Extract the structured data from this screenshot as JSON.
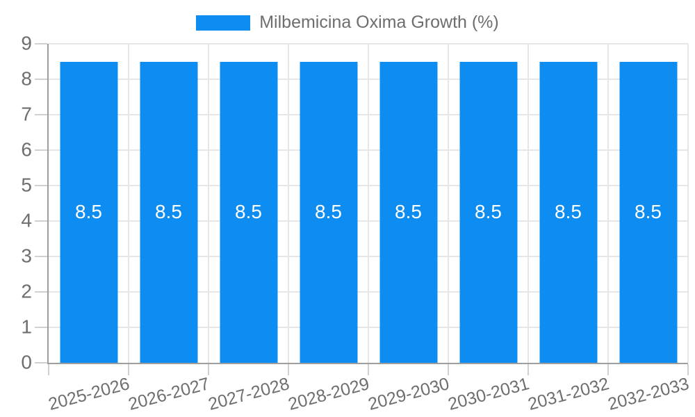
{
  "legend": {
    "label": "Milbemicina Oxima Growth (%)"
  },
  "chart_data": {
    "type": "bar",
    "title": "",
    "series": [
      {
        "name": "Milbemicina Oxima Growth (%)",
        "values": [
          8.5,
          8.5,
          8.5,
          8.5,
          8.5,
          8.5,
          8.5,
          8.5
        ]
      }
    ],
    "categories": [
      "2025-2026",
      "2026-2027",
      "2027-2028",
      "2028-2029",
      "2029-2030",
      "2030-2031",
      "2031-2032",
      "2032-2033"
    ],
    "value_labels": [
      "8.5",
      "8.5",
      "8.5",
      "8.5",
      "8.5",
      "8.5",
      "8.5",
      "8.5"
    ],
    "xlabel": "",
    "ylabel": "",
    "ylim": [
      0,
      9
    ],
    "y_ticks": [
      0,
      1,
      2,
      3,
      4,
      5,
      6,
      7,
      8,
      9
    ],
    "grid": true,
    "legend_position": "top",
    "colors": {
      "bar": "#0d8cf2",
      "bar_value_text": "#ffffff",
      "axis_text": "#6e6e6e",
      "axis_line": "#9e9e9e",
      "gridline": "#e6e6e6",
      "tick": "#d0d0d0",
      "background": "#ffffff"
    }
  }
}
